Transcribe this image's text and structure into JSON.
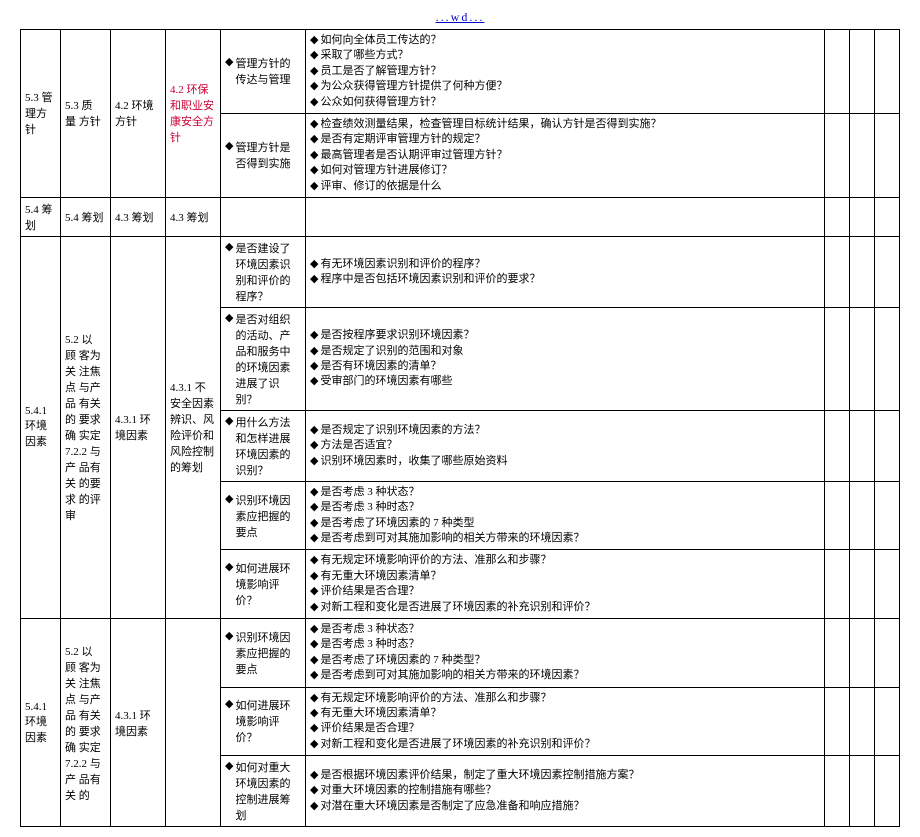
{
  "header": "...wd...",
  "rows": [
    {
      "c1": "5.3 管理方针",
      "c2": "5.3 质 量 方针",
      "c3": "4.2 环境方针",
      "c4": "4.2 环保和职业安康安全方针",
      "c4_red": true,
      "subs": [
        {
          "c5": "管理方针的传达与管理",
          "c6": [
            "如何向全体员工传达的？",
            "采取了哪些方式？",
            "员工是否了解管理方针？",
            "为公众获得管理方针提供了何种方便？",
            "公众如何获得管理方针？"
          ]
        },
        {
          "c5": "管理方针是否得到实施",
          "c6": [
            "检查绩效测量结果，检查管理目标统计结果，确认方针是否得到实施？",
            "是否有定期评审管理方针的规定？",
            "最高管理者是否认期评审过管理方针？",
            "如何对管理方针进展修订？",
            "评审、修订的依据是什么"
          ]
        }
      ]
    },
    {
      "c1": "5.4 筹划",
      "c2": "5.4 筹划",
      "c3": "4.3 筹划",
      "c4": "4.3 筹划",
      "subs": [
        {
          "c5": "",
          "c6": []
        }
      ]
    },
    {
      "c1": "5.4.1 环境因素",
      "c2": "5.2 以 顾 客为 关 注焦 点 与产 品 有关 的 要求 确 实定 7.2.2 与 产 品有 关 的要 求 的评审",
      "c3": "4.3.1 环境因素",
      "c4": "4.3.1 不安全因素辨识、风险评价和风险控制的筹划",
      "subs": [
        {
          "c5": "是否建设了环境因素识别和评价的程序？",
          "c6": [
            "有无环境因素识别和评价的程序？",
            "程序中是否包括环境因素识别和评价的要求？"
          ]
        },
        {
          "c5": "是否对组织的活动、产品和服务中的环境因素进展了识别？",
          "c6": [
            "是否按程序要求识别环境因素？",
            "是否规定了识别的范围和对象",
            "是否有环境因素的清单？",
            "受审部门的环境因素有哪些"
          ]
        },
        {
          "c5": "用什么方法和怎样进展环境因素的识别？",
          "c6": [
            "是否规定了识别环境因素的方法？",
            "方法是否适宜？",
            "识别环境因素时，收集了哪些原始资料"
          ]
        },
        {
          "c5": "识别环境因素应把握的要点",
          "c6": [
            "是否考虑 3 种状态？",
            "是否考虑 3 种时态？",
            "是否考虑了环境因素的 7 种类型",
            "是否考虑到可对其施加影响的相关方带来的环境因素？"
          ]
        },
        {
          "c5": "如何进展环境影响评价？",
          "c6": [
            "有无规定环境影响评价的方法、准那么和步骤？",
            "有无重大环境因素清单？",
            "评价结果是否合理？",
            "对新工程和变化是否进展了环境因素的补充识别和评价？"
          ]
        }
      ]
    },
    {
      "c1": "5.4.1 环境因素",
      "c2": "5.2 以 顾 客为 关 注焦 点 与产 品 有关 的 要求 确 实定 7.2.2 与 产 品有 关 的",
      "c3": "4.3.1 环境因素",
      "c4": "",
      "subs": [
        {
          "c5": "识别环境因素应把握的要点",
          "c6": [
            "是否考虑 3 种状态？",
            "是否考虑 3 种时态？",
            "是否考虑了环境因素的 7 种类型？",
            "是否考虑到可对其施加影响的相关方带来的环境因素？"
          ]
        },
        {
          "c5": "如何进展环境影响评价？",
          "c6": [
            "有无规定环境影响评价的方法、准那么和步骤？",
            "有无重大环境因素清单？",
            "评价结果是否合理？",
            "对新工程和变化是否进展了环境因素的补充识别和评价？"
          ]
        },
        {
          "c5": "如何对重大环境因素的控制进展筹划",
          "c6": [
            "是否根据环境因素评价结果，制定了重大环境因素控制措施方案？",
            "对重大环境因素的控制措施有哪些？",
            "对潜在重大环境因素是否制定了应急准备和响应措施？"
          ]
        }
      ]
    }
  ]
}
